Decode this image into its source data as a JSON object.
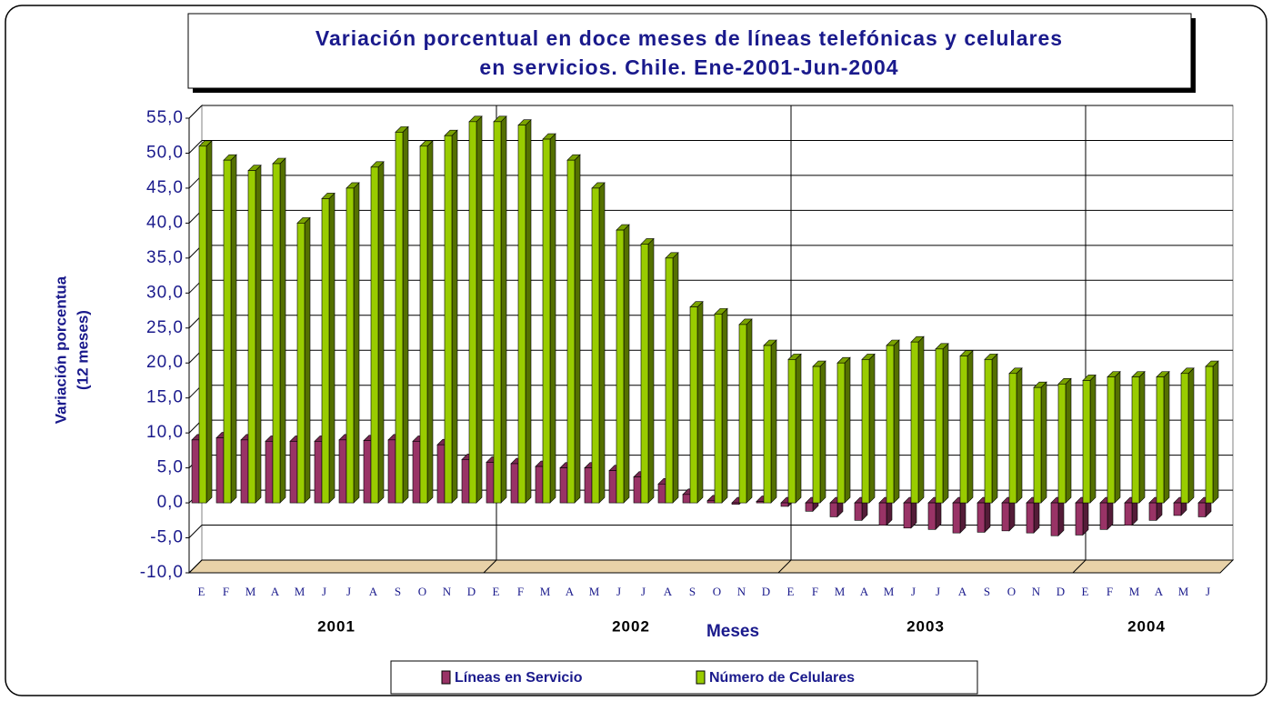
{
  "chart_data": {
    "type": "bar3d",
    "title_lines": [
      "Variación porcentual en doce meses de líneas telefónicas y celulares",
      "en servicios. Chile. Ene-2001-Jun-2004"
    ],
    "ylabel_lines": [
      "Variación porcentua",
      "(12 meses)"
    ],
    "xlabel": "Meses",
    "categories": [
      "E",
      "F",
      "M",
      "A",
      "M",
      "J",
      "J",
      "A",
      "S",
      "O",
      "N",
      "D",
      "E",
      "F",
      "M",
      "A",
      "M",
      "J",
      "J",
      "A",
      "S",
      "O",
      "N",
      "D",
      "E",
      "F",
      "M",
      "A",
      "M",
      "J",
      "J",
      "A",
      "S",
      "O",
      "N",
      "D",
      "E",
      "F",
      "M",
      "A",
      "M",
      "J"
    ],
    "year_groups": [
      "2001",
      "2002",
      "2003",
      "2004"
    ],
    "series": [
      {
        "name": "Líneas en Servicio",
        "color": "#993366",
        "values": [
          9.0,
          9.3,
          9.0,
          8.8,
          8.8,
          8.8,
          9.0,
          8.9,
          9.0,
          8.8,
          8.3,
          6.2,
          5.8,
          5.6,
          5.2,
          5.0,
          5.0,
          4.6,
          3.7,
          2.7,
          1.2,
          0.3,
          -0.2,
          0.2,
          -0.5,
          -1.2,
          -2.0,
          -2.5,
          -3.2,
          -3.6,
          -3.8,
          -4.3,
          -4.2,
          -4.0,
          -4.3,
          -4.7,
          -4.6,
          -3.8,
          -3.2,
          -2.5,
          -1.8,
          -2.0
        ]
      },
      {
        "name": "Número de Celulares",
        "color": "#99cc00",
        "values": [
          51.0,
          49.0,
          47.5,
          48.5,
          40.0,
          43.5,
          45.0,
          48.0,
          53.0,
          51.0,
          52.5,
          54.5,
          54.5,
          54.0,
          52.0,
          49.0,
          45.0,
          39.0,
          37.0,
          35.0,
          28.0,
          27.0,
          25.5,
          22.5,
          20.5,
          19.5,
          20.0,
          20.5,
          22.5,
          23.0,
          22.0,
          21.0,
          20.5,
          18.5,
          16.5,
          17.0,
          17.5,
          18.0,
          18.0,
          18.0,
          18.5,
          19.5
        ]
      }
    ],
    "ylim": [
      -10,
      55
    ],
    "yticks": [
      {
        "value": -10,
        "label": "-10,0"
      },
      {
        "value": -5,
        "label": "-5,0"
      },
      {
        "value": 0,
        "label": "0,0"
      },
      {
        "value": 5,
        "label": "5,0"
      },
      {
        "value": 10,
        "label": "10,0"
      },
      {
        "value": 15,
        "label": "15,0"
      },
      {
        "value": 20,
        "label": "20,0"
      },
      {
        "value": 25,
        "label": "25,0"
      },
      {
        "value": 30,
        "label": "30,0"
      },
      {
        "value": 35,
        "label": "35,0"
      },
      {
        "value": 40,
        "label": "40,0"
      },
      {
        "value": 45,
        "label": "45,0"
      },
      {
        "value": 50,
        "label": "50,0"
      },
      {
        "value": 55,
        "label": "55,0"
      }
    ],
    "grid": true
  }
}
